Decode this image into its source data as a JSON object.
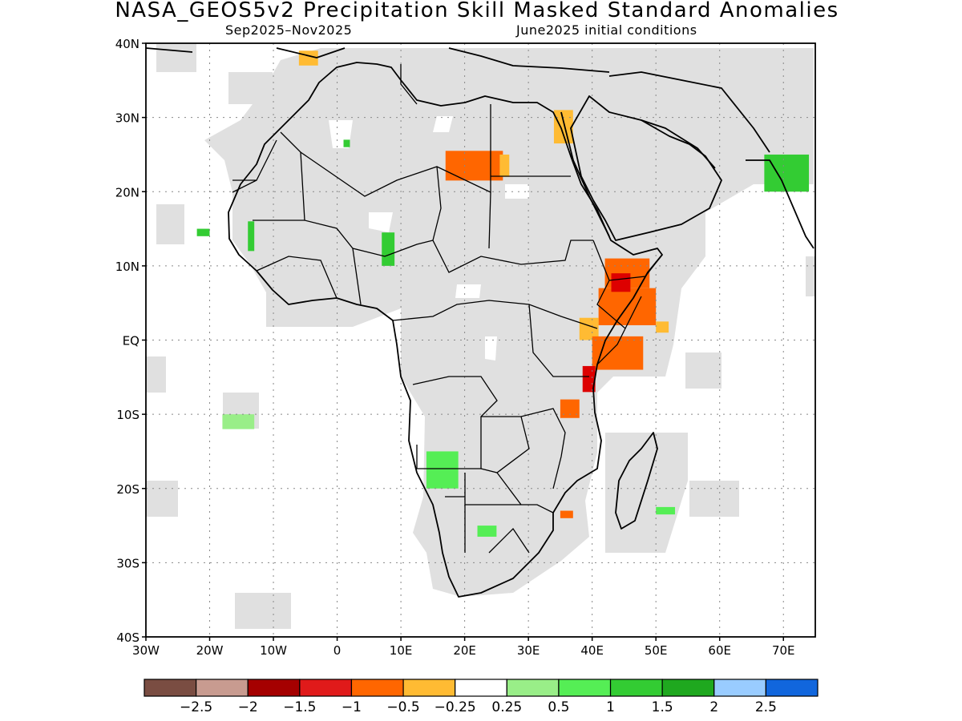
{
  "title": "NASA_GEOS5v2 Precipitation Skill Masked Standard Anomalies",
  "subtitle_left": "Sep2025–Nov2025",
  "subtitle_right": "June2025 initial conditions",
  "map": {
    "lon_range": [
      -30,
      75
    ],
    "lat_range": [
      -40,
      40
    ],
    "lon_ticks": [
      {
        "value": -30,
        "label": "30W"
      },
      {
        "value": -20,
        "label": "20W"
      },
      {
        "value": -10,
        "label": "10W"
      },
      {
        "value": 0,
        "label": "0"
      },
      {
        "value": 10,
        "label": "10E"
      },
      {
        "value": 20,
        "label": "20E"
      },
      {
        "value": 30,
        "label": "30E"
      },
      {
        "value": 40,
        "label": "40E"
      },
      {
        "value": 50,
        "label": "50E"
      },
      {
        "value": 60,
        "label": "60E"
      },
      {
        "value": 70,
        "label": "70E"
      }
    ],
    "lat_ticks": [
      {
        "value": 40,
        "label": "40N"
      },
      {
        "value": 30,
        "label": "30N"
      },
      {
        "value": 20,
        "label": "20N"
      },
      {
        "value": 10,
        "label": "10N"
      },
      {
        "value": 0,
        "label": "EQ"
      },
      {
        "value": -10,
        "label": "10S"
      },
      {
        "value": -20,
        "label": "20S"
      },
      {
        "value": -30,
        "label": "30S"
      },
      {
        "value": -40,
        "label": "40S"
      }
    ],
    "grid": true,
    "mask_color": "#e0e0e0",
    "anomalies": [
      {
        "lon": [
          17,
          26
        ],
        "lat": [
          21.5,
          25.5
        ],
        "color": "#ff6600"
      },
      {
        "lon": [
          25.5,
          27
        ],
        "lat": [
          22,
          25
        ],
        "color": "#ffbb33"
      },
      {
        "lon": [
          34,
          37
        ],
        "lat": [
          26.5,
          31
        ],
        "color": "#ffbb33"
      },
      {
        "lon": [
          42,
          49
        ],
        "lat": [
          7,
          11
        ],
        "color": "#ff6600"
      },
      {
        "lon": [
          41,
          50
        ],
        "lat": [
          2,
          7
        ],
        "color": "#ff6600"
      },
      {
        "lon": [
          43,
          46
        ],
        "lat": [
          6.5,
          9
        ],
        "color": "#dd0000"
      },
      {
        "lon": [
          38,
          41
        ],
        "lat": [
          0,
          3
        ],
        "color": "#ffbb33"
      },
      {
        "lon": [
          40,
          48
        ],
        "lat": [
          -4,
          0.5
        ],
        "color": "#ff6600"
      },
      {
        "lon": [
          38.5,
          40.5
        ],
        "lat": [
          -7,
          -3.5
        ],
        "color": "#dd0000"
      },
      {
        "lon": [
          50,
          52
        ],
        "lat": [
          1,
          2.5
        ],
        "color": "#ffbb33"
      },
      {
        "lon": [
          35,
          38
        ],
        "lat": [
          -10.5,
          -8
        ],
        "color": "#ff6600"
      },
      {
        "lon": [
          35,
          37
        ],
        "lat": [
          -24,
          -23
        ],
        "color": "#ff6600"
      },
      {
        "lon": 8,
        "lat": [
          10,
          14.5
        ],
        "width": 2,
        "color": "#33cc33"
      },
      {
        "lon": [
          -22,
          -20
        ],
        "lat": [
          14,
          15
        ],
        "color": "#33cc33"
      },
      {
        "lon": [
          -14,
          -13
        ],
        "lat": [
          12,
          16
        ],
        "color": "#33cc33"
      },
      {
        "lon": [
          14,
          19
        ],
        "lat": [
          -20,
          -15
        ],
        "color": "#55ee55"
      },
      {
        "lon": [
          -18,
          -13
        ],
        "lat": [
          -12,
          -10
        ],
        "color": "#99ee88"
      },
      {
        "lon": [
          67,
          74
        ],
        "lat": [
          20,
          25
        ],
        "color": "#33cc33"
      },
      {
        "lon": [
          50,
          53
        ],
        "lat": [
          -23.5,
          -22.5
        ],
        "color": "#55ee55"
      },
      {
        "lon": [
          1,
          2
        ],
        "lat": [
          26,
          27
        ],
        "color": "#33cc33"
      },
      {
        "lon": [
          -6,
          -3
        ],
        "lat": [
          37,
          39
        ],
        "color": "#ffbb33"
      },
      {
        "lon": [
          22,
          25
        ],
        "lat": [
          -26.5,
          -25
        ],
        "color": "#55ee55"
      }
    ]
  },
  "colorbar": {
    "colors": [
      "#7a4d42",
      "#c89b90",
      "#a50000",
      "#e01a1a",
      "#ff6600",
      "#ffbb33",
      "#ffffff",
      "#99ee88",
      "#55ee55",
      "#33cc33",
      "#1fa81f",
      "#99ccff",
      "#1166dd"
    ],
    "labels": [
      "−2.5",
      "−2",
      "−1.5",
      "−1",
      "−0.5",
      "−0.25",
      "0.25",
      "0.5",
      "1",
      "1.5",
      "2",
      "2.5"
    ]
  }
}
